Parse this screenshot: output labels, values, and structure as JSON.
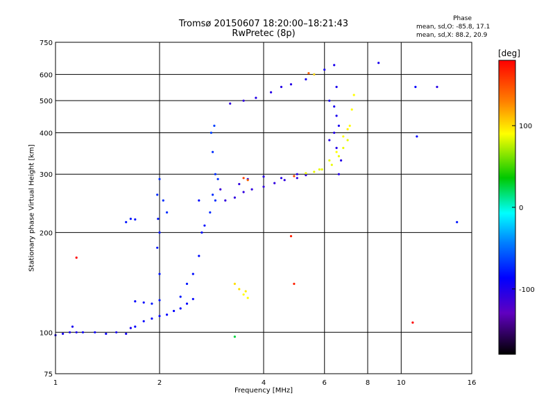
{
  "title": {
    "line1": "Tromsø 20150607 18:20:00–18:21:43",
    "line2": "RwPretec (8p)"
  },
  "phase_info": {
    "title": "Phase",
    "o_stats": "mean, sd,O: -85.8, 17.1",
    "x_stats": "mean, sd,X: 88.2, 20.9"
  },
  "colorbar": {
    "unit": "[deg]",
    "ticks": [
      "100",
      "0",
      "-100"
    ],
    "colors": [
      "#ff0000",
      "#ff8000",
      "#ffff00",
      "#00c800",
      "#00ffff",
      "#0080ff",
      "#0000ff",
      "#6000c0",
      "#000000"
    ]
  },
  "chart_data": {
    "type": "scatter",
    "xlabel": "Frequency [MHz]",
    "ylabel": "Stationary phase Virtual Height [km]",
    "x_scale": "log",
    "y_scale": "log",
    "xlim": [
      1,
      16
    ],
    "ylim": [
      75,
      750
    ],
    "x_ticks": [
      1,
      2,
      4,
      6,
      8,
      10,
      16
    ],
    "y_ticks": [
      75,
      100,
      200,
      300,
      400,
      500,
      600,
      750
    ],
    "grid": true,
    "color_scale": "phase (deg)",
    "series": [
      {
        "points": [
          [
            1.0,
            98,
            -110
          ],
          [
            1.05,
            99,
            -110
          ],
          [
            1.1,
            100,
            -110
          ],
          [
            1.12,
            104,
            -110
          ],
          [
            1.15,
            100,
            -110
          ],
          [
            1.2,
            100,
            -105
          ],
          [
            1.3,
            100,
            -105
          ],
          [
            1.4,
            99,
            -105
          ],
          [
            1.5,
            100,
            -108
          ],
          [
            1.6,
            99,
            -108
          ],
          [
            1.65,
            103,
            -110
          ],
          [
            1.7,
            104,
            -100
          ],
          [
            1.8,
            108,
            -100
          ],
          [
            1.9,
            110,
            -100
          ],
          [
            2.0,
            112,
            -100
          ],
          [
            2.1,
            113,
            -100
          ],
          [
            2.2,
            116,
            -100
          ],
          [
            2.3,
            118,
            -100
          ],
          [
            2.4,
            122,
            -100
          ],
          [
            2.5,
            126,
            -100
          ],
          [
            1.7,
            124,
            -100
          ],
          [
            1.8,
            123,
            -100
          ],
          [
            1.9,
            122,
            -90
          ],
          [
            2.0,
            125,
            -90
          ],
          [
            2.0,
            150,
            -90
          ],
          [
            1.97,
            180,
            -90
          ],
          [
            1.98,
            220,
            -90
          ],
          [
            1.97,
            260,
            -80
          ],
          [
            2.0,
            290,
            -80
          ],
          [
            2.05,
            250,
            -80
          ],
          [
            2.1,
            230,
            -80
          ],
          [
            2.0,
            200,
            -90
          ],
          [
            1.6,
            215,
            -90
          ],
          [
            1.65,
            220,
            -90
          ],
          [
            1.7,
            219,
            -90
          ],
          [
            2.3,
            128,
            -90
          ],
          [
            2.4,
            140,
            -90
          ],
          [
            2.5,
            150,
            -95
          ],
          [
            2.6,
            170,
            -95
          ],
          [
            2.65,
            200,
            -95
          ],
          [
            2.7,
            210,
            -95
          ],
          [
            2.8,
            230,
            -80
          ],
          [
            2.85,
            260,
            -80
          ],
          [
            2.9,
            300,
            -80
          ],
          [
            2.85,
            350,
            -80
          ],
          [
            2.82,
            400,
            -70
          ],
          [
            2.88,
            420,
            -70
          ],
          [
            2.9,
            250,
            -80
          ],
          [
            2.95,
            290,
            -80
          ],
          [
            2.6,
            250,
            -95
          ],
          [
            3.0,
            270,
            -125
          ],
          [
            3.1,
            250,
            -120
          ],
          [
            3.3,
            255,
            -120
          ],
          [
            3.5,
            265,
            -120
          ],
          [
            3.7,
            270,
            -120
          ],
          [
            4.0,
            275,
            -120
          ],
          [
            4.3,
            282,
            -120
          ],
          [
            4.6,
            288,
            -120
          ],
          [
            5.0,
            292,
            -120
          ],
          [
            5.3,
            298,
            -120
          ],
          [
            3.4,
            280,
            -120
          ],
          [
            3.6,
            290,
            -115
          ],
          [
            4.0,
            295,
            -115
          ],
          [
            4.5,
            292,
            -115
          ],
          [
            5.0,
            300,
            -115
          ],
          [
            5.3,
            302,
            95
          ],
          [
            5.6,
            305,
            95
          ],
          [
            5.9,
            310,
            95
          ],
          [
            6.3,
            320,
            95
          ],
          [
            6.6,
            340,
            95
          ],
          [
            6.8,
            360,
            95
          ],
          [
            7.0,
            380,
            95
          ],
          [
            7.1,
            420,
            100
          ],
          [
            7.2,
            470,
            100
          ],
          [
            7.3,
            520,
            100
          ],
          [
            5.8,
            310,
            95
          ],
          [
            6.2,
            330,
            95
          ],
          [
            6.5,
            350,
            100
          ],
          [
            6.8,
            390,
            100
          ],
          [
            7.0,
            410,
            105
          ],
          [
            3.2,
            490,
            -120
          ],
          [
            3.5,
            500,
            -120
          ],
          [
            3.8,
            510,
            -115
          ],
          [
            4.2,
            530,
            -115
          ],
          [
            4.5,
            550,
            -115
          ],
          [
            4.8,
            560,
            -115
          ],
          [
            5.3,
            580,
            -110
          ],
          [
            5.6,
            600,
            -110
          ],
          [
            6.0,
            620,
            -110
          ],
          [
            6.4,
            640,
            -110
          ],
          [
            6.2,
            500,
            -110
          ],
          [
            6.4,
            480,
            -110
          ],
          [
            6.5,
            450,
            -110
          ],
          [
            6.6,
            420,
            -110
          ],
          [
            6.4,
            400,
            -115
          ],
          [
            6.2,
            380,
            -115
          ],
          [
            6.5,
            360,
            -115
          ],
          [
            6.7,
            330,
            -115
          ],
          [
            6.6,
            300,
            -115
          ],
          [
            6.5,
            550,
            -110
          ],
          [
            3.3,
            140,
            110
          ],
          [
            3.4,
            135,
            110
          ],
          [
            3.5,
            130,
            100
          ],
          [
            3.6,
            127,
            100
          ],
          [
            3.55,
            133,
            105
          ],
          [
            5.6,
            600,
            110
          ],
          [
            5.4,
            605,
            150
          ],
          [
            4.9,
            296,
            160
          ],
          [
            3.5,
            292,
            160
          ],
          [
            3.6,
            288,
            150
          ],
          [
            8.6,
            650,
            -110
          ],
          [
            11.0,
            550,
            -100
          ],
          [
            12.7,
            550,
            -115
          ],
          [
            11.1,
            390,
            -100
          ],
          [
            14.5,
            215,
            -90
          ],
          [
            3.3,
            97,
            30
          ],
          [
            4.8,
            195,
            170
          ],
          [
            4.9,
            140,
            170
          ],
          [
            10.8,
            107,
            180
          ],
          [
            1.15,
            168,
            180
          ]
        ]
      }
    ]
  }
}
